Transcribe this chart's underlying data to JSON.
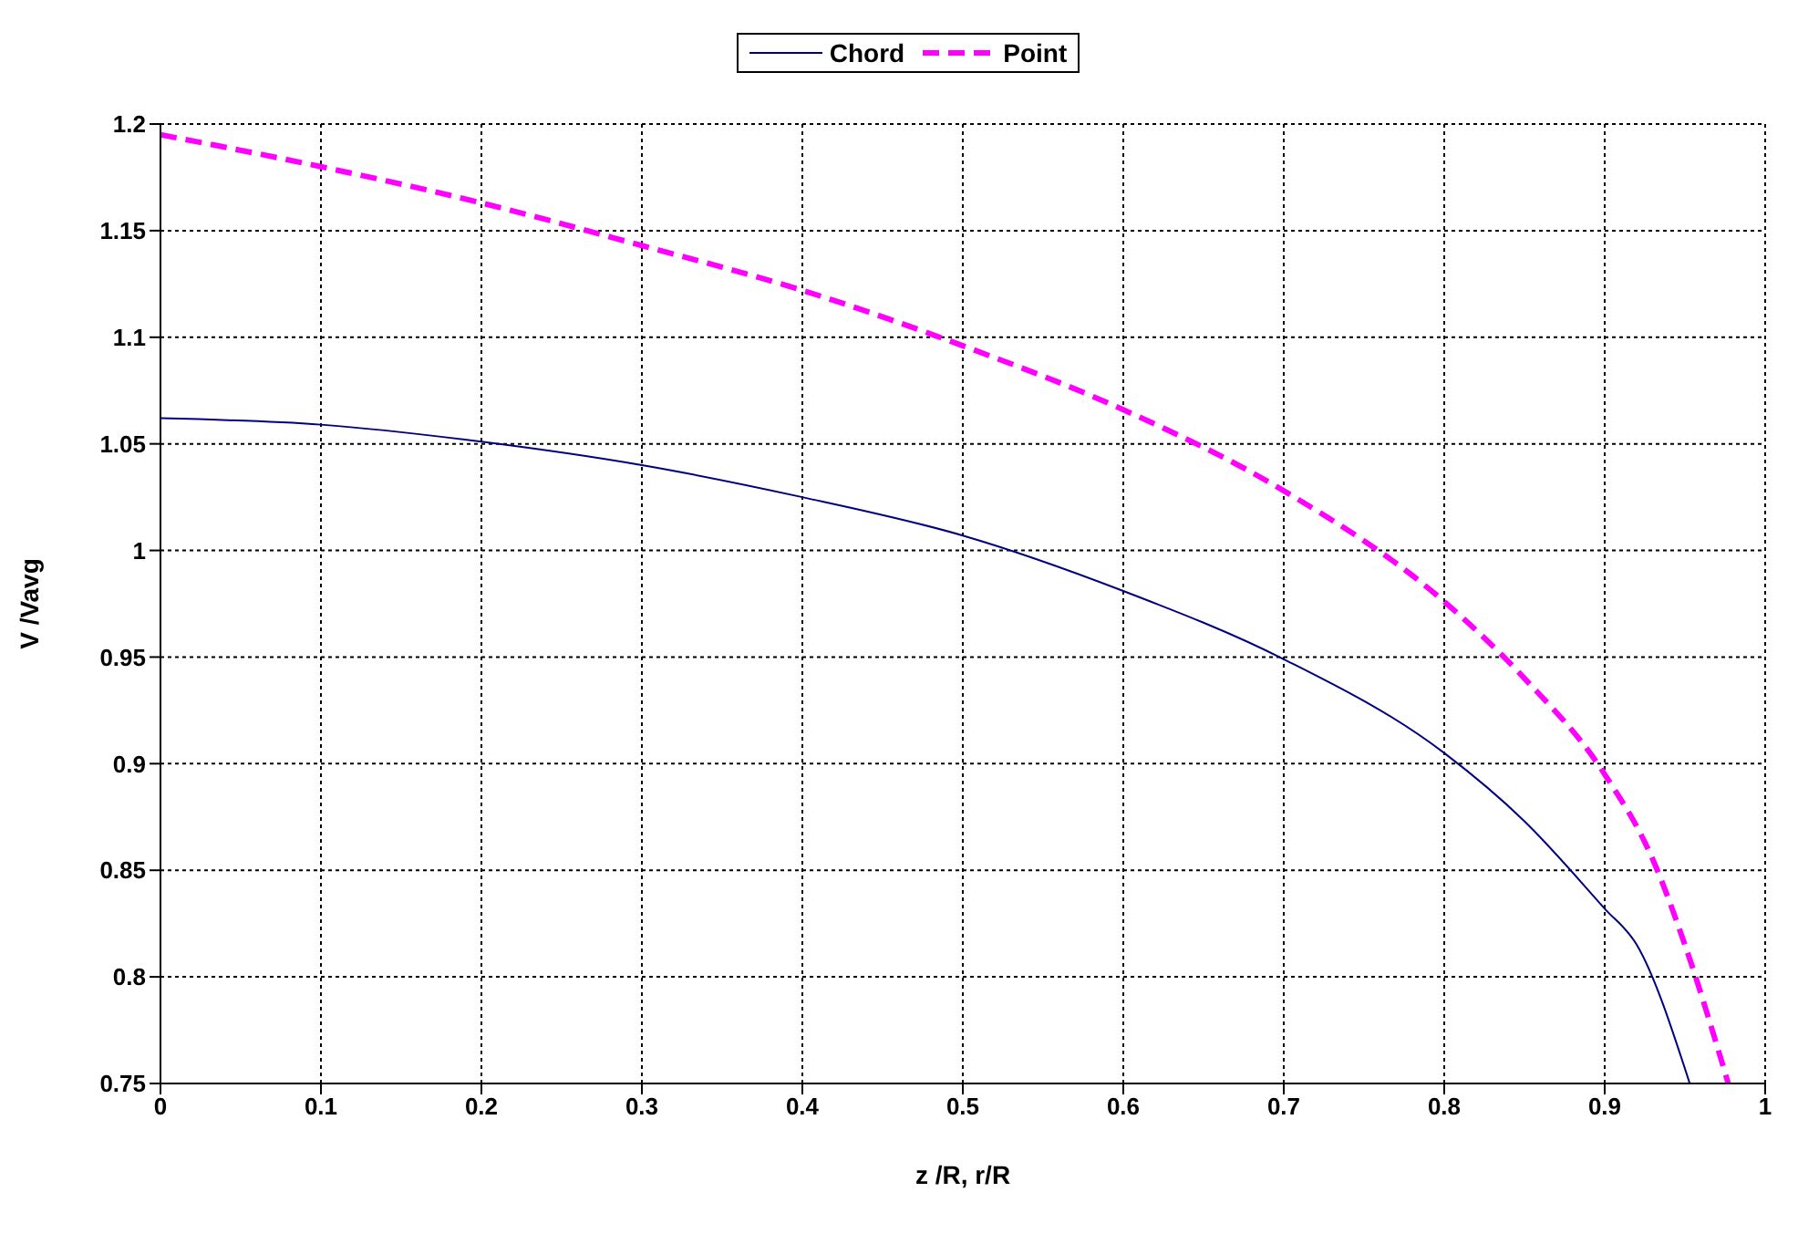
{
  "chart_data": {
    "type": "line",
    "xlabel": "z /R,  r/R",
    "ylabel": "V /Vavg",
    "xlim": [
      0,
      1
    ],
    "xticks": [
      0,
      0.1,
      0.2,
      0.3,
      0.4,
      0.5,
      0.6,
      0.7,
      0.8,
      0.9,
      1
    ],
    "ylim": [
      0.75,
      1.2
    ],
    "yticks": [
      0.75,
      0.8,
      0.85,
      0.9,
      0.95,
      1,
      1.05,
      1.1,
      1.15,
      1.2
    ],
    "grid": true,
    "legend": "top",
    "marker": "none",
    "series": [
      {
        "name": "Chord",
        "color": "#000080",
        "line_style": "solid",
        "x": [
          0,
          0.1,
          0.2,
          0.3,
          0.4,
          0.5,
          0.6,
          0.7,
          0.8,
          0.85,
          0.9,
          0.92,
          0.953
        ],
        "values": [
          1.062,
          1.059,
          1.051,
          1.04,
          1.025,
          1.007,
          0.981,
          0.949,
          0.905,
          0.873,
          0.832,
          0.815,
          0.75
        ]
      },
      {
        "name": "Point",
        "color": "#ff00ff",
        "line_style": "dashed",
        "x": [
          0,
          0.1,
          0.2,
          0.3,
          0.4,
          0.5,
          0.6,
          0.7,
          0.8,
          0.85,
          0.9,
          0.93,
          0.95,
          0.977
        ],
        "values": [
          1.195,
          1.18,
          1.163,
          1.143,
          1.122,
          1.096,
          1.066,
          1.028,
          0.976,
          0.94,
          0.895,
          0.855,
          0.815,
          0.75
        ]
      }
    ]
  }
}
